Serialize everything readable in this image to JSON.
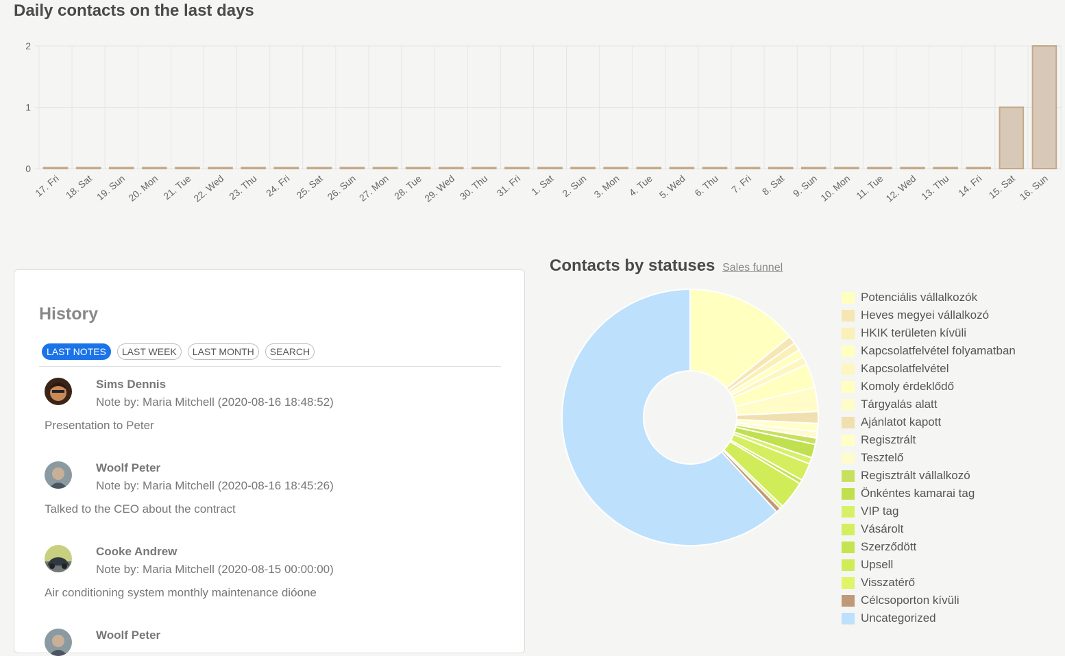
{
  "bar_section": {
    "title": "Daily contacts on the last days"
  },
  "history": {
    "title": "History",
    "tabs": [
      "LAST NOTES",
      "LAST WEEK",
      "LAST MONTH",
      "SEARCH"
    ],
    "notes": [
      {
        "name": "Sims Dennis",
        "meta": "Note by: Maria Mitchell (2020-08-16 18:48:52)",
        "text": "Presentation to Peter"
      },
      {
        "name": "Woolf Peter",
        "meta": "Note by: Maria Mitchell (2020-08-16 18:45:26)",
        "text": "Talked to the CEO about the contract"
      },
      {
        "name": "Cooke Andrew",
        "meta": "Note by: Maria Mitchell (2020-08-15 00:00:00)",
        "text": "Air conditioning system monthly maintenance dióone"
      },
      {
        "name": "Woolf Peter",
        "meta": "",
        "text": ""
      }
    ]
  },
  "pie_section": {
    "title": "Contacts by statuses",
    "link": "Sales funnel"
  },
  "chart_data": [
    {
      "type": "bar",
      "title": "Daily contacts on the last days",
      "categories": [
        "17. Fri",
        "18. Sat",
        "19. Sun",
        "20. Mon",
        "21. Tue",
        "22. Wed",
        "23. Thu",
        "24. Fri",
        "25. Sat",
        "26. Sun",
        "27. Mon",
        "28. Tue",
        "29. Wed",
        "30. Thu",
        "31. Fri",
        "1. Sat",
        "2. Sun",
        "3. Mon",
        "4. Tue",
        "5. Wed",
        "6. Thu",
        "7. Fri",
        "8. Sat",
        "9. Sun",
        "10. Mon",
        "11. Tue",
        "12. Wed",
        "13. Thu",
        "14. Fri",
        "15. Sat",
        "16. Sun"
      ],
      "values": [
        0,
        0,
        0,
        0,
        0,
        0,
        0,
        0,
        0,
        0,
        0,
        0,
        0,
        0,
        0,
        0,
        0,
        0,
        0,
        0,
        0,
        0,
        0,
        0,
        0,
        0,
        0,
        0,
        0,
        1,
        2
      ],
      "yticks": [
        0,
        1,
        2
      ],
      "ylim": [
        0,
        2
      ],
      "grid": true,
      "bar_color": "#d8c8b8",
      "bar_border": "#c4a888"
    },
    {
      "type": "pie",
      "title": "Contacts by statuses",
      "legend_position": "right",
      "slices": [
        {
          "label": "Potenciális vállalkozók",
          "value": 14,
          "color": "#ffffc0"
        },
        {
          "label": "Heves megyei vállalkozó",
          "value": 1,
          "color": "#f5e6b4"
        },
        {
          "label": "HKIK területen kívüli",
          "value": 1,
          "color": "#faf0b8"
        },
        {
          "label": "Kapcsolatfelvétel folyamatban",
          "value": 1,
          "color": "#ffffc0"
        },
        {
          "label": "Kapcsolatfelvétel",
          "value": 1,
          "color": "#fdf6c0"
        },
        {
          "label": "Komoly érdeklődő",
          "value": 3,
          "color": "#ffffc0"
        },
        {
          "label": "Tárgyalás alatt",
          "value": 3,
          "color": "#fffcc8"
        },
        {
          "label": "Ajánlatot kapott",
          "value": 1.5,
          "color": "#f0e0b0"
        },
        {
          "label": "Regisztrált",
          "value": 1,
          "color": "#ffffc8"
        },
        {
          "label": "Tesztelő",
          "value": 0.8,
          "color": "#fffbd0"
        },
        {
          "label": "Regisztrált vállalkozó",
          "value": 0.8,
          "color": "#c8e060"
        },
        {
          "label": "Önkéntes kamarai tag",
          "value": 1.7,
          "color": "#c0e050"
        },
        {
          "label": "VIP tag",
          "value": 0.8,
          "color": "#d8f068"
        },
        {
          "label": "Vásárolt",
          "value": 2.2,
          "color": "#d4ee60"
        },
        {
          "label": "Szerződött",
          "value": 0.5,
          "color": "#c4e450"
        },
        {
          "label": "Upsell",
          "value": 3.5,
          "color": "#d0ec58"
        },
        {
          "label": "Visszatérő",
          "value": 0.4,
          "color": "#e0f468"
        },
        {
          "label": "Célcsoporton kívüli",
          "value": 0.6,
          "color": "#c09a78"
        },
        {
          "label": "Uncategorized",
          "value": 61.2,
          "color": "#bde0fd"
        }
      ]
    }
  ]
}
